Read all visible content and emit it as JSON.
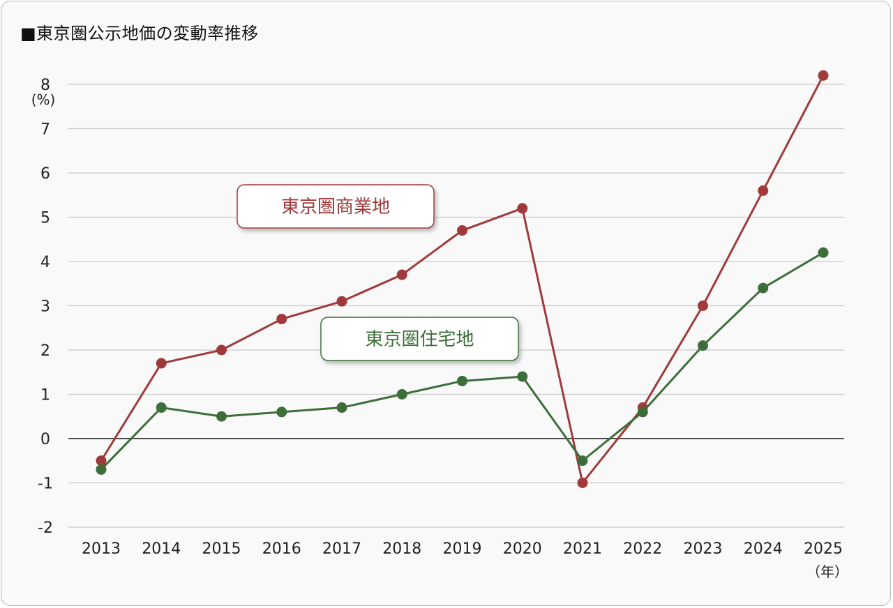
{
  "title": "■東京圏公示地価の変動率推移",
  "chart_data": {
    "type": "line",
    "title": "■東京圏公示地価の変動率推移",
    "categories": [
      "2013",
      "2014",
      "2015",
      "2016",
      "2017",
      "2018",
      "2019",
      "2020",
      "2021",
      "2022",
      "2023",
      "2024",
      "2025"
    ],
    "ylabel": "(%)",
    "xlabel": "（年）",
    "ylim": [
      -2,
      8
    ],
    "yticks": [
      "8",
      "7",
      "6",
      "5",
      "4",
      "3",
      "2",
      "1",
      "0",
      "-1",
      "-2"
    ],
    "grid": true,
    "series": [
      {
        "name": "東京圏商業地",
        "color": "#a03a3a",
        "values": [
          -0.5,
          1.7,
          2.0,
          2.7,
          3.1,
          3.7,
          4.7,
          5.2,
          -1.0,
          0.7,
          3.0,
          5.6,
          8.2
        ]
      },
      {
        "name": "東京圏住宅地",
        "color": "#3d6e3a",
        "values": [
          -0.7,
          0.7,
          0.5,
          0.6,
          0.7,
          1.0,
          1.3,
          1.4,
          -0.5,
          0.6,
          2.1,
          3.4,
          4.2
        ]
      }
    ]
  }
}
